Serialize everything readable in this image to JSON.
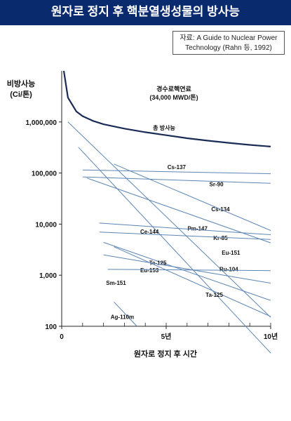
{
  "page_title": "원자로 정지 후 핵분열생성물의 방사능",
  "source_note": [
    "자료: A Guide to Nuclear Power",
    "Technology (Rahn 등, 1992)"
  ],
  "colors": {
    "title_bg": "#0a2a6e",
    "total_curve": "#1a2c55",
    "isotope_line": "#5b85b5"
  },
  "chart_data": {
    "type": "line",
    "ylabel": [
      "비방사능",
      "(Ci/톤)"
    ],
    "xlabel": "원자로 정지 후 시간",
    "log_y": true,
    "ylim": [
      100,
      10000000
    ],
    "xlim": [
      0,
      10
    ],
    "y_ticks": [
      {
        "value": 100,
        "label": "100"
      },
      {
        "value": 1000,
        "label": "1,000"
      },
      {
        "value": 10000,
        "label": "10,000"
      },
      {
        "value": 100000,
        "label": "100,000"
      },
      {
        "value": 1000000,
        "label": "1,000,000"
      }
    ],
    "x_ticks": [
      {
        "value": 0,
        "label": "0"
      },
      {
        "value": 5,
        "label": "5년"
      },
      {
        "value": 10,
        "label": "10년"
      }
    ],
    "fuel_label": [
      "경수로핵연료",
      "(34,000 MWD/톤)"
    ],
    "series": [
      {
        "name": "총 방사능",
        "kind": "total",
        "points": [
          [
            0.1,
            10000000
          ],
          [
            0.3,
            3000000
          ],
          [
            0.7,
            1600000
          ],
          [
            1,
            1300000
          ],
          [
            1.5,
            1050000
          ],
          [
            2,
            900000
          ],
          [
            3,
            740000
          ],
          [
            4,
            630000
          ],
          [
            5,
            550000
          ],
          [
            6,
            480000
          ],
          [
            7,
            430000
          ],
          [
            8,
            390000
          ],
          [
            9,
            355000
          ],
          [
            10,
            330000
          ]
        ],
        "label_at": [
          4.9,
          700000
        ]
      },
      {
        "name": "Cs-137",
        "points": [
          [
            1,
            115000
          ],
          [
            10,
            97000
          ]
        ],
        "label_at": [
          5.5,
          120000
        ]
      },
      {
        "name": "Sr-90",
        "points": [
          [
            1,
            84000
          ],
          [
            10,
            63000
          ]
        ],
        "label_at": [
          7.4,
          55000
        ]
      },
      {
        "name": "Cs-134",
        "points": [
          [
            1.2,
            80000
          ],
          [
            10,
            4300
          ]
        ],
        "label_at": [
          7.6,
          18000
        ]
      },
      {
        "name": "Ce-144",
        "points": [
          [
            0.8,
            320000
          ],
          [
            10,
            30
          ]
        ],
        "label_at": [
          4.2,
          6500
        ]
      },
      {
        "name": "Pm-147",
        "points": [
          [
            2.5,
            150000
          ],
          [
            10,
            7500
          ]
        ],
        "label_at": [
          6.5,
          7500
        ]
      },
      {
        "name": "Kr-85",
        "points": [
          [
            1.8,
            10500
          ],
          [
            10,
            6200
          ]
        ],
        "label_at": [
          7.6,
          4900
        ]
      },
      {
        "name": "Ru-104",
        "points": [
          [
            0.3,
            1000000
          ],
          [
            10,
            150
          ]
        ],
        "label_at": [
          8.0,
          1200
        ]
      },
      {
        "name": "Eu-151",
        "points": [
          [
            1.8,
            7000
          ],
          [
            10,
            5000
          ]
        ],
        "label_at": [
          8.1,
          2500
        ]
      },
      {
        "name": "Te-125",
        "points": [
          [
            2,
            4400
          ],
          [
            10,
            320
          ]
        ],
        "label_at": [
          4.6,
          1600
        ]
      },
      {
        "name": "Eu-153",
        "points": [
          [
            2,
            2500
          ],
          [
            10,
            700
          ]
        ],
        "label_at": [
          4.2,
          1150
        ]
      },
      {
        "name": "Sm-151",
        "points": [
          [
            2.2,
            1300
          ],
          [
            10,
            1230
          ]
        ],
        "label_at": [
          2.6,
          650
        ]
      },
      {
        "name": "Ta-125",
        "points": [
          [
            2.5,
            3600
          ],
          [
            10,
            155
          ]
        ],
        "label_at": [
          7.3,
          380
        ]
      },
      {
        "name": "Ag-110m",
        "points": [
          [
            2.5,
            300
          ],
          [
            3.6,
            100
          ]
        ],
        "label_at": [
          2.9,
          140
        ]
      }
    ]
  }
}
